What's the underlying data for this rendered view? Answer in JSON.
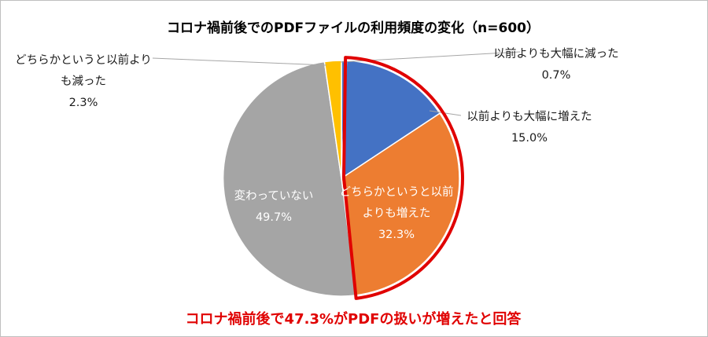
{
  "chart_data": {
    "type": "pie",
    "title": "コロナ禍前後でのPDFファイルの利用頻度の変化（n=600）",
    "unit": "%",
    "slices": [
      {
        "label_lines": [
          "以前よりも大幅に減った"
        ],
        "value": 0.7,
        "value_label": "0.7%",
        "color": "#4472c4"
      },
      {
        "label_lines": [
          "以前よりも大幅に増えた"
        ],
        "value": 15.0,
        "value_label": "15.0%",
        "color": "#4472c4"
      },
      {
        "label_lines": [
          "どちらかというと以前",
          "よりも増えた"
        ],
        "value": 32.3,
        "value_label": "32.3%",
        "color": "#ed7d31"
      },
      {
        "label_lines": [
          "変わっていない"
        ],
        "value": 49.7,
        "value_label": "49.7%",
        "color": "#a5a5a5"
      },
      {
        "label_lines": [
          "どちらかというと以前より",
          "も減った"
        ],
        "value": 2.3,
        "value_label": "2.3%",
        "color": "#ffc000"
      }
    ],
    "highlight": {
      "slices": [
        "以前よりも大幅に増えた",
        "どちらかというと以前よりも増えた"
      ],
      "color": "#e00000"
    },
    "annotation": "コロナ禍前後で47.3%がPDFの扱いが増えたと回答",
    "annotation_color": "#e00000"
  }
}
